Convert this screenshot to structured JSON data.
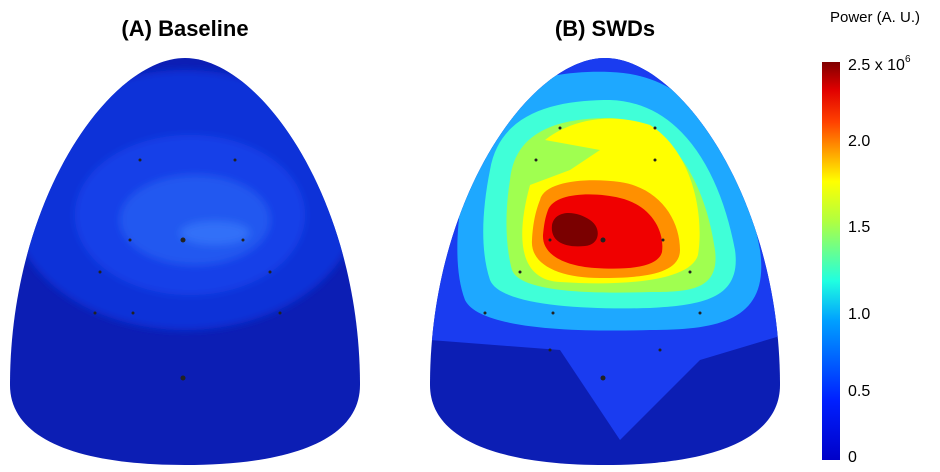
{
  "panels": [
    {
      "title": "(A) Baseline"
    },
    {
      "title": "(B) SWDs"
    }
  ],
  "colorbar": {
    "title": "Power (A. U.)",
    "ticks": [
      {
        "label": "0"
      },
      {
        "label": "0.5"
      },
      {
        "label": "1.0"
      },
      {
        "label": "1.5"
      },
      {
        "label": "2.0"
      },
      {
        "label": "2.5 x 10",
        "exponent": "6"
      }
    ]
  }
}
